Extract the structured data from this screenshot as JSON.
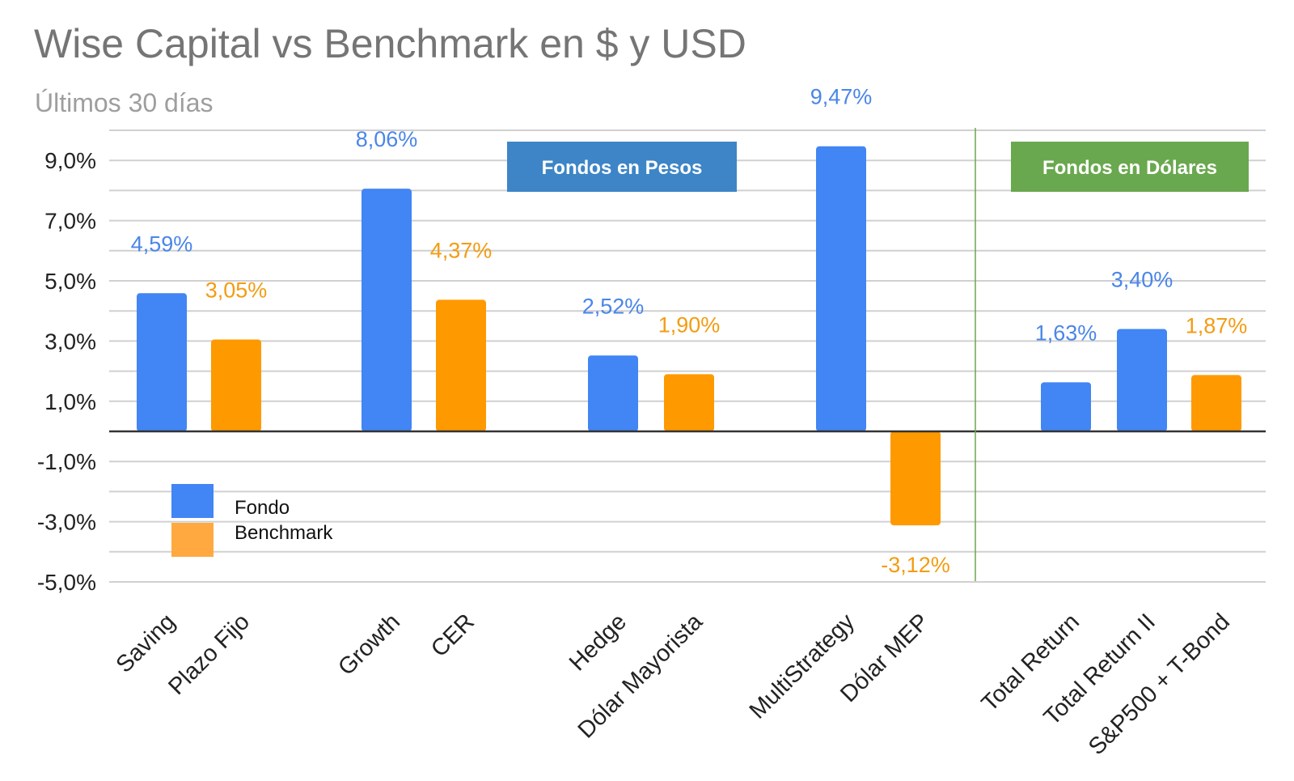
{
  "chart_data": {
    "type": "bar",
    "title": "Wise Capital vs Benchmark en $ y USD",
    "subtitle": "Últimos 30 días",
    "ylim": [
      -5.0,
      10.0
    ],
    "y_ticks": [
      "9,0%",
      "7,0%",
      "5,0%",
      "3,0%",
      "1,0%",
      "-1,0%",
      "-3,0%",
      "-5,0%"
    ],
    "grid": true,
    "legend": {
      "placement": "bottom-left",
      "entries": [
        {
          "name": "Fondo",
          "color": "#4285f4"
        },
        {
          "name": "Benchmark",
          "color": "#ffa940"
        }
      ]
    },
    "bars": [
      {
        "category": "Saving",
        "value": 4.59,
        "label": "4,59%",
        "series": "Fondo",
        "group": 0
      },
      {
        "category": "Plazo Fijo",
        "value": 3.05,
        "label": "3,05%",
        "series": "Benchmark",
        "group": 0
      },
      {
        "category": "Growth",
        "value": 8.06,
        "label": "8,06%",
        "series": "Fondo",
        "group": 1
      },
      {
        "category": "CER",
        "value": 4.37,
        "label": "4,37%",
        "series": "Benchmark",
        "group": 1
      },
      {
        "category": "Hedge",
        "value": 2.52,
        "label": "2,52%",
        "series": "Fondo",
        "group": 2
      },
      {
        "category": "Dólar Mayorista",
        "value": 1.9,
        "label": "1,90%",
        "series": "Benchmark",
        "group": 2
      },
      {
        "category": "MultiStrategy",
        "value": 9.47,
        "label": "9,47%",
        "series": "Fondo",
        "group": 3
      },
      {
        "category": "Dólar MEP",
        "value": -3.12,
        "label": "-3,12%",
        "series": "Benchmark",
        "group": 3
      },
      {
        "category": "Total Return",
        "value": 1.63,
        "label": "1,63%",
        "series": "Fondo",
        "group": 4
      },
      {
        "category": "Total Return II",
        "value": 3.4,
        "label": "3,40%",
        "series": "Fondo",
        "group": 4
      },
      {
        "category": "S&P500 + T-Bond",
        "value": 1.87,
        "label": "1,87%",
        "series": "Benchmark",
        "group": 4
      }
    ],
    "annotations": [
      {
        "text": "Fondos en Pesos",
        "color": "#3d85c6"
      },
      {
        "text": "Fondos en Dólares",
        "color": "#6aa84f"
      }
    ],
    "colors": {
      "Fondo": "#4285f4",
      "Benchmark": "#ff9900",
      "fondo_label": "#4a86e8",
      "benchmark_label": "#f39c12",
      "divider": "#6aa84f"
    }
  }
}
